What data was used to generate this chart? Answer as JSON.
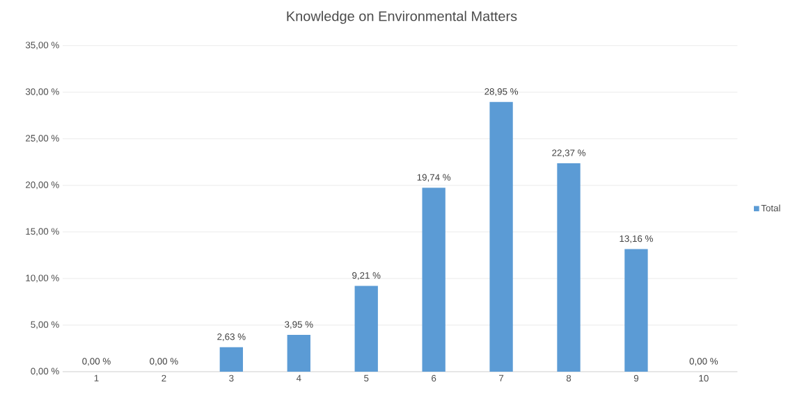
{
  "chart_data": {
    "type": "bar",
    "title": "Knowledge on Environmental Matters",
    "categories": [
      "1",
      "2",
      "3",
      "4",
      "5",
      "6",
      "7",
      "8",
      "9",
      "10"
    ],
    "series": [
      {
        "name": "Total",
        "color": "#5b9bd5",
        "values": [
          0,
          0,
          2.63,
          3.95,
          9.21,
          19.74,
          28.95,
          22.37,
          13.16,
          0
        ],
        "value_labels": [
          "0,00 %",
          "0,00 %",
          "2,63 %",
          "3,95 %",
          "9,21 %",
          "19,74 %",
          "28,95 %",
          "22,37 %",
          "13,16 %",
          "0,00 %"
        ]
      }
    ],
    "ylim": [
      0,
      35
    ],
    "yticks": [
      {
        "value": 0,
        "label": "0,00 %"
      },
      {
        "value": 5,
        "label": "5,00 %"
      },
      {
        "value": 10,
        "label": "10,00 %"
      },
      {
        "value": 15,
        "label": "15,00 %"
      },
      {
        "value": 20,
        "label": "20,00 %"
      },
      {
        "value": 25,
        "label": "25,00 %"
      },
      {
        "value": 30,
        "label": "30,00 %"
      },
      {
        "value": 35,
        "label": "35,00 %"
      }
    ],
    "grid": "y",
    "legend": "right"
  }
}
